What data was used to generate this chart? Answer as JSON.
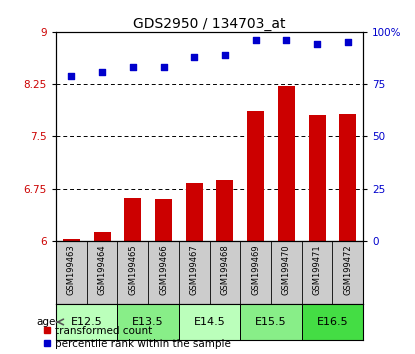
{
  "title": "GDS2950 / 134703_at",
  "samples": [
    "GSM199463",
    "GSM199464",
    "GSM199465",
    "GSM199466",
    "GSM199467",
    "GSM199468",
    "GSM199469",
    "GSM199470",
    "GSM199471",
    "GSM199472"
  ],
  "transformed_count": [
    6.03,
    6.12,
    6.62,
    6.6,
    6.83,
    6.88,
    7.86,
    8.22,
    7.81,
    7.82
  ],
  "percentile_rank": [
    79,
    81,
    83,
    83,
    88,
    89,
    96,
    96,
    94,
    95
  ],
  "ylim_left": [
    6.0,
    9.0
  ],
  "ylim_right": [
    0,
    100
  ],
  "yticks_left": [
    6.0,
    6.75,
    7.5,
    8.25,
    9.0
  ],
  "ytick_labels_left": [
    "6",
    "6.75",
    "7.5",
    "8.25",
    "9"
  ],
  "yticks_right": [
    0,
    25,
    50,
    75,
    100
  ],
  "ytick_labels_right": [
    "0",
    "25",
    "50",
    "75",
    "100%"
  ],
  "bar_color": "#cc0000",
  "scatter_color": "#0000cc",
  "bar_bottom": 6.0,
  "age_groups": [
    {
      "label": "E12.5",
      "start": 0,
      "end": 2,
      "color": "#bbffbb"
    },
    {
      "label": "E13.5",
      "start": 2,
      "end": 4,
      "color": "#88ee88"
    },
    {
      "label": "E14.5",
      "start": 4,
      "end": 6,
      "color": "#bbffbb"
    },
    {
      "label": "E15.5",
      "start": 6,
      "end": 8,
      "color": "#88ee88"
    },
    {
      "label": "E16.5",
      "start": 8,
      "end": 10,
      "color": "#44dd44"
    }
  ],
  "bg_color": "#ffffff",
  "xlabel_area_bg": "#cccccc",
  "legend_red": "transformed count",
  "legend_blue": "percentile rank within the sample",
  "age_label": "age"
}
